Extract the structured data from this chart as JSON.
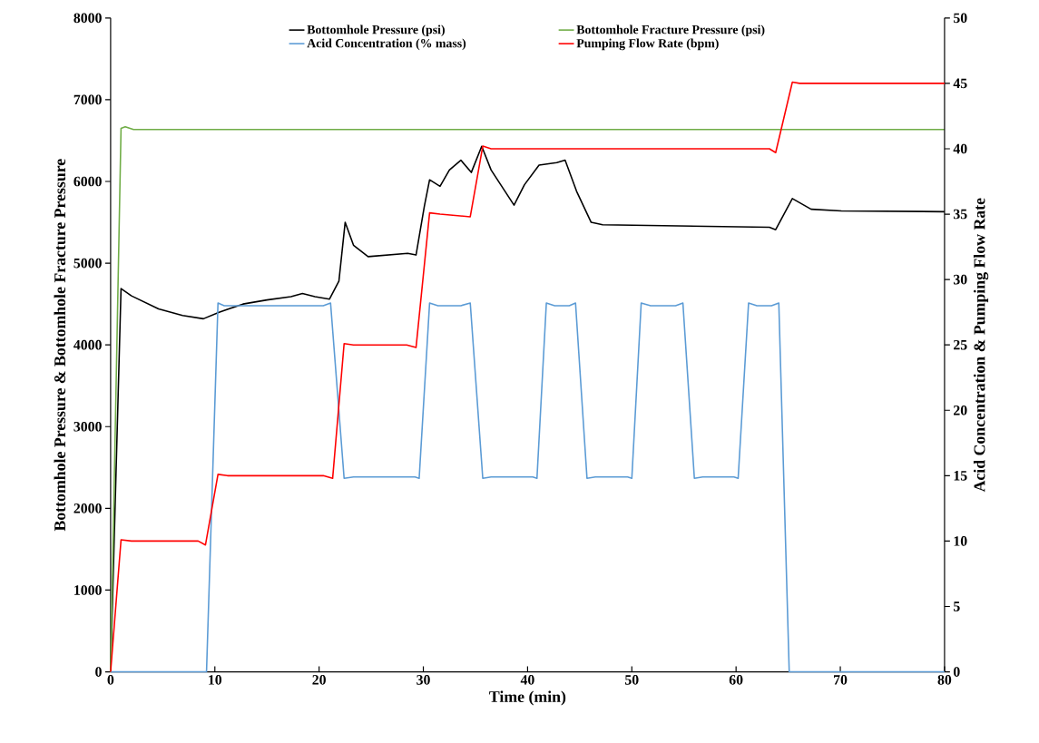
{
  "chart_data": {
    "type": "line",
    "xlabel": "Time (min)",
    "ylabel": "Bottomhole Pressure & Bottomhole Fracture Pressure",
    "y2label": "Acid Concentration & Pumping Flow Rate",
    "xlim": [
      0,
      80
    ],
    "xticks": [
      0,
      10,
      20,
      30,
      40,
      50,
      60,
      70,
      80
    ],
    "ylim": [
      0,
      8000
    ],
    "yticks": [
      0,
      1000,
      2000,
      3000,
      4000,
      5000,
      6000,
      7000,
      8000
    ],
    "y2lim": [
      0,
      50
    ],
    "y2ticks": [
      0,
      5,
      10,
      15,
      20,
      25,
      30,
      35,
      40,
      45,
      50
    ],
    "legend": "top",
    "marker": "none",
    "line_style": "solid",
    "series": [
      {
        "name": "Bottomhole Pressure (psi)",
        "color": "#000000",
        "x": [
          0,
          1.0,
          2.0,
          4.6,
          6.9,
          8.9,
          10.4,
          12.7,
          15.0,
          17.3,
          18.4,
          19.6,
          21.0,
          21.9,
          22.5,
          23.3,
          24.7,
          28.5,
          29.3,
          30.1,
          30.6,
          31.6,
          32.5,
          33.6,
          34.6,
          35.6,
          36.5,
          38.7,
          39.7,
          41.1,
          42.8,
          43.6,
          44.7,
          46.1,
          47.2,
          63.2,
          63.8,
          65.4,
          67.2,
          70.1,
          80
        ],
        "values": [
          0,
          4690,
          4600,
          4440,
          4360,
          4320,
          4400,
          4500,
          4550,
          4590,
          4630,
          4590,
          4560,
          4780,
          5500,
          5220,
          5080,
          5120,
          5100,
          5700,
          6020,
          5940,
          6140,
          6260,
          6110,
          6430,
          6140,
          5710,
          5960,
          6200,
          6230,
          6260,
          5880,
          5500,
          5470,
          5440,
          5410,
          5790,
          5660,
          5640,
          5630
        ]
      },
      {
        "name": "Bottomhole Fracture Pressure (psi)",
        "color": "#70ad47",
        "x": [
          0,
          1.0,
          1.4,
          2.2,
          80
        ],
        "values": [
          0,
          6650,
          6670,
          6635,
          6635
        ]
      },
      {
        "name": "Acid Concentration (% mass)",
        "color": "#5b9bd5",
        "axis": "y2",
        "x": [
          0,
          8.8,
          9.2,
          10.3,
          10.9,
          20.4,
          21.1,
          22.4,
          23.3,
          29.2,
          29.6,
          30.6,
          31.4,
          33.6,
          34.5,
          35.7,
          36.5,
          40.5,
          40.9,
          41.8,
          42.6,
          44.0,
          44.6,
          45.7,
          46.5,
          49.6,
          50.0,
          50.9,
          51.8,
          54.2,
          54.9,
          56.0,
          56.8,
          59.8,
          60.2,
          61.2,
          62.0,
          63.4,
          64.1,
          65.1,
          80
        ],
        "values": [
          0,
          0,
          0,
          28.2,
          28.0,
          28.0,
          28.2,
          14.8,
          14.9,
          14.9,
          14.8,
          28.2,
          28.0,
          28.0,
          28.2,
          14.8,
          14.9,
          14.9,
          14.8,
          28.2,
          28.0,
          28.0,
          28.2,
          14.8,
          14.9,
          14.9,
          14.8,
          28.2,
          28.0,
          28.0,
          28.2,
          14.8,
          14.9,
          14.9,
          14.8,
          28.2,
          28.0,
          28.0,
          28.2,
          0,
          0
        ]
      },
      {
        "name": "Pumping Flow Rate (bpm)",
        "color": "#ff0000",
        "axis": "y2",
        "x": [
          0,
          1.0,
          2.0,
          8.4,
          9.1,
          10.3,
          11.2,
          20.4,
          21.3,
          22.4,
          23.3,
          28.4,
          29.3,
          30.6,
          31.6,
          34.5,
          35.7,
          36.5,
          63.2,
          63.8,
          65.4,
          66.1,
          80
        ],
        "values": [
          0,
          10.1,
          10.0,
          10.0,
          9.7,
          15.1,
          15.0,
          15.0,
          14.8,
          25.1,
          25.0,
          25.0,
          24.8,
          35.1,
          35.0,
          34.8,
          40.2,
          40.0,
          40.0,
          39.7,
          45.1,
          45.0,
          45.0
        ]
      }
    ]
  }
}
